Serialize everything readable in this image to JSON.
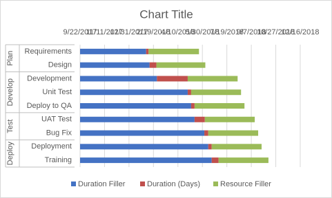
{
  "chart_data": {
    "type": "gantt",
    "title": "Chart Title",
    "category_groups": [
      {
        "name": "Plan",
        "categories": [
          "Requirements",
          "Design"
        ]
      },
      {
        "name": "Develop",
        "categories": [
          "Development",
          "Unit Test",
          "Deploy to QA"
        ]
      },
      {
        "name": "Test",
        "categories": [
          "UAT Test",
          "Bug Fix"
        ]
      },
      {
        "name": "Deploy",
        "categories": [
          "Deployment",
          "Training"
        ]
      }
    ],
    "series": [
      {
        "name": "Duration Filler",
        "color": "#4472c4",
        "values": [
          43135,
          43142,
          43157,
          43220,
          43227,
          43234,
          43254,
          43262,
          43269
        ]
      },
      {
        "name": "Duration (Days)",
        "color": "#c0504d",
        "values": [
          5,
          14,
          63,
          7,
          7,
          21,
          8,
          7,
          14
        ]
      },
      {
        "name": "Resource Filler",
        "color": "#9bbb59",
        "values": [
          103,
          100,
          102,
          102,
          102,
          102,
          102,
          102,
          102
        ]
      }
    ],
    "xlim": [
      43000,
      43450
    ],
    "xticks": [
      {
        "value": 43000,
        "label": "9/22/2017"
      },
      {
        "value": 43050,
        "label": "11/11/2017"
      },
      {
        "value": 43100,
        "label": "12/31/2017"
      },
      {
        "value": 43150,
        "label": "2/19/2018"
      },
      {
        "value": 43200,
        "label": "4/10/2018"
      },
      {
        "value": 43250,
        "label": "5/30/2018"
      },
      {
        "value": 43300,
        "label": "7/19/2018"
      },
      {
        "value": 43350,
        "label": "9/7/2018"
      },
      {
        "value": 43400,
        "label": "10/27/2018"
      },
      {
        "value": 43450,
        "label": "12/16/2018"
      }
    ],
    "grid": true,
    "legend": "bottom"
  }
}
